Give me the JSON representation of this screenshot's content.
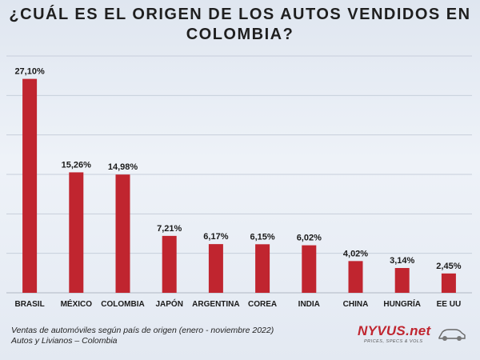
{
  "title_line1": "¿CUÁL ES EL ORIGEN DE LOS AUTOS VENDIDOS EN",
  "title_line2": "COLOMBIA?",
  "footnote": {
    "line1": "Ventas de automóviles según país de origen (enero - noviembre 2022)",
    "line2": "Autos y Livianos – Colombia"
  },
  "logo": {
    "text": "NYVUS.net",
    "tagline": "PRICES, SPECS & VOLS",
    "icon": "car-icon"
  },
  "colors": {
    "bar": "#c0252f"
  },
  "chart_data": {
    "type": "bar",
    "categories": [
      "BRASIL",
      "MÉXICO",
      "COLOMBIA",
      "JAPÓN",
      "ARGENTINA",
      "COREA",
      "INDIA",
      "CHINA",
      "HUNGRÍA",
      "EE UU"
    ],
    "values": [
      27.1,
      15.26,
      14.98,
      7.21,
      6.17,
      6.15,
      6.02,
      4.02,
      3.14,
      2.45
    ],
    "data_labels": [
      "27,10%",
      "15,26%",
      "14,98%",
      "7,21%",
      "6,17%",
      "6,15%",
      "6,02%",
      "4,02%",
      "3,14%",
      "2,45%"
    ],
    "ylim": [
      0,
      30
    ],
    "grid": true,
    "xlabel": "",
    "ylabel": ""
  }
}
